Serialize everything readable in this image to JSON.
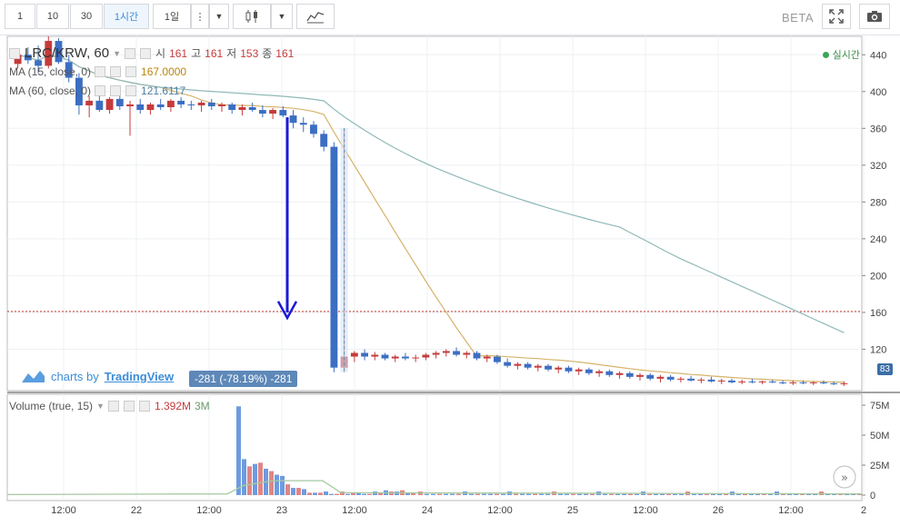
{
  "toolbar": {
    "intervals": [
      {
        "label": "1",
        "active": false
      },
      {
        "label": "10",
        "active": false
      },
      {
        "label": "30",
        "active": false
      },
      {
        "label": "1시간",
        "active": true
      },
      {
        "label": "1일",
        "active": false
      }
    ],
    "beta_label": "BETA"
  },
  "symbol": {
    "name": "LRC/KRW, 60",
    "open_label": "시",
    "open": "161",
    "high_label": "고",
    "high": "161",
    "low_label": "저",
    "low": "153",
    "close_label": "종",
    "close": "161"
  },
  "indicators": [
    {
      "label": "MA (15, close, 0)",
      "value": "167.0000",
      "color": "#c8a24a"
    },
    {
      "label": "MA (60, close, 0)",
      "value": "121.6117",
      "color": "#6aa0a0"
    }
  ],
  "realtime_label": "실시간",
  "watermark": {
    "prefix": "charts by",
    "brand": "TradingView"
  },
  "change_label": "-281 (-78.19%) -281",
  "current_price": "83",
  "volume": {
    "label": "Volume (true, 15)",
    "value1": "1.392M",
    "value2": "3M"
  },
  "chart_data": {
    "type": "candlestick",
    "price_axis": {
      "ticks": [
        120,
        160,
        200,
        240,
        280,
        320,
        360,
        400,
        440
      ],
      "range": [
        75,
        460
      ]
    },
    "volume_axis": {
      "ticks": [
        "0",
        "25M",
        "50M",
        "75M"
      ]
    },
    "x_tick_labels": [
      "12:00",
      "22",
      "12:00",
      "23",
      "12:00",
      "24",
      "12:00",
      "25",
      "12:00",
      "26",
      "12:00",
      "2"
    ],
    "horizontal_line": 161,
    "candles": [
      [
        430,
        445,
        425,
        440
      ],
      [
        440,
        448,
        430,
        434
      ],
      [
        434,
        450,
        420,
        428
      ],
      [
        428,
        460,
        425,
        455
      ],
      [
        455,
        458,
        430,
        432
      ],
      [
        432,
        440,
        410,
        415
      ],
      [
        415,
        420,
        375,
        385
      ],
      [
        385,
        395,
        372,
        390
      ],
      [
        390,
        398,
        378,
        380
      ],
      [
        380,
        394,
        376,
        392
      ],
      [
        392,
        396,
        380,
        384
      ],
      [
        384,
        390,
        352,
        386
      ],
      [
        386,
        392,
        376,
        380
      ],
      [
        380,
        388,
        375,
        386
      ],
      [
        386,
        392,
        380,
        383
      ],
      [
        383,
        392,
        378,
        390
      ],
      [
        390,
        394,
        382,
        386
      ],
      [
        386,
        390,
        380,
        385
      ],
      [
        385,
        390,
        378,
        388
      ],
      [
        388,
        392,
        380,
        384
      ],
      [
        384,
        388,
        378,
        386
      ],
      [
        386,
        388,
        376,
        380
      ],
      [
        380,
        386,
        374,
        383
      ],
      [
        383,
        388,
        378,
        380
      ],
      [
        380,
        385,
        372,
        376
      ],
      [
        376,
        382,
        370,
        380
      ],
      [
        380,
        384,
        372,
        374
      ],
      [
        374,
        380,
        360,
        366
      ],
      [
        366,
        372,
        356,
        364
      ],
      [
        364,
        368,
        350,
        354
      ],
      [
        354,
        358,
        335,
        340
      ],
      [
        340,
        345,
        95,
        100
      ],
      [
        100,
        360,
        95,
        112
      ],
      [
        112,
        118,
        106,
        116
      ],
      [
        116,
        120,
        108,
        112
      ],
      [
        112,
        117,
        108,
        114
      ],
      [
        114,
        116,
        108,
        110
      ],
      [
        110,
        114,
        106,
        112
      ],
      [
        112,
        116,
        108,
        110
      ],
      [
        110,
        114,
        106,
        111
      ],
      [
        111,
        116,
        108,
        114
      ],
      [
        114,
        118,
        110,
        116
      ],
      [
        116,
        120,
        112,
        118
      ],
      [
        118,
        122,
        112,
        114
      ],
      [
        114,
        118,
        110,
        116
      ],
      [
        116,
        118,
        108,
        110
      ],
      [
        110,
        114,
        106,
        112
      ],
      [
        112,
        114,
        104,
        106
      ],
      [
        106,
        110,
        100,
        102
      ],
      [
        102,
        106,
        98,
        104
      ],
      [
        104,
        106,
        98,
        100
      ],
      [
        100,
        104,
        96,
        102
      ],
      [
        102,
        104,
        96,
        98
      ],
      [
        98,
        102,
        94,
        100
      ],
      [
        100,
        102,
        94,
        96
      ],
      [
        96,
        100,
        92,
        98
      ],
      [
        98,
        100,
        92,
        94
      ],
      [
        94,
        98,
        90,
        96
      ],
      [
        96,
        98,
        90,
        92
      ],
      [
        92,
        96,
        88,
        94
      ],
      [
        94,
        96,
        88,
        90
      ],
      [
        90,
        94,
        86,
        92
      ],
      [
        92,
        94,
        86,
        88
      ],
      [
        88,
        92,
        84,
        90
      ],
      [
        90,
        92,
        85,
        87
      ],
      [
        87,
        90,
        84,
        88
      ],
      [
        88,
        91,
        85,
        86
      ],
      [
        86,
        89,
        83,
        87
      ],
      [
        87,
        90,
        84,
        85
      ],
      [
        85,
        88,
        82,
        86
      ],
      [
        86,
        88,
        83,
        84
      ],
      [
        84,
        87,
        82,
        85
      ],
      [
        85,
        88,
        83,
        84
      ],
      [
        84,
        86,
        82,
        85
      ],
      [
        85,
        87,
        83,
        84
      ],
      [
        84,
        86,
        82,
        83
      ],
      [
        83,
        86,
        81,
        84
      ],
      [
        84,
        86,
        82,
        83
      ],
      [
        83,
        85,
        81,
        84
      ],
      [
        84,
        86,
        82,
        83
      ],
      [
        83,
        85,
        81,
        82
      ],
      [
        82,
        85,
        80,
        83
      ]
    ],
    "volumes": [
      [
        74,
        0
      ],
      [
        30,
        0
      ],
      [
        24,
        1
      ],
      [
        26,
        0
      ],
      [
        27,
        1
      ],
      [
        22,
        0
      ],
      [
        20,
        1
      ],
      [
        17,
        0
      ],
      [
        16,
        0
      ],
      [
        9,
        1
      ],
      [
        6,
        0
      ],
      [
        6,
        1
      ],
      [
        5,
        0
      ],
      [
        2,
        1
      ],
      [
        2,
        0
      ],
      [
        2,
        1
      ],
      [
        3,
        0
      ],
      [
        1,
        0
      ],
      [
        1,
        1
      ],
      [
        3,
        1
      ],
      [
        1,
        0
      ],
      [
        2,
        1
      ],
      [
        2,
        0
      ],
      [
        1,
        0
      ],
      [
        1,
        1
      ],
      [
        3,
        0
      ],
      [
        2,
        1
      ],
      [
        4,
        0
      ],
      [
        3,
        1
      ],
      [
        3,
        0
      ],
      [
        4,
        1
      ],
      [
        2,
        0
      ],
      [
        2,
        1
      ]
    ],
    "volume_start_index": 31
  }
}
